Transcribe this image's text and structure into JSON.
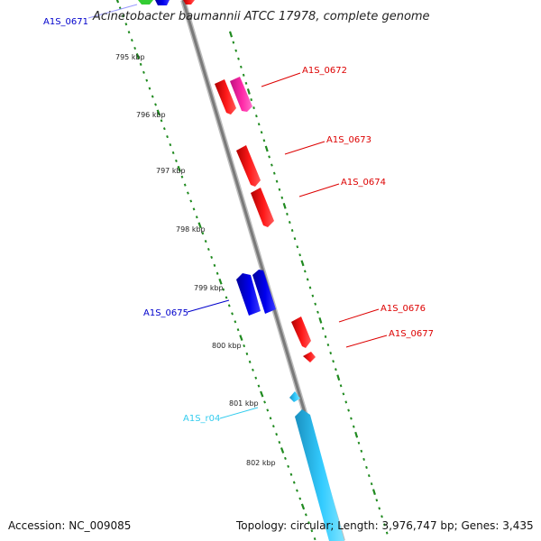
{
  "title": "Acinetobacter baumannii ATCC 17978, complete genome",
  "footer": {
    "accession": "Accession: NC_009085",
    "topology": "Topology: circular; Length: 3,976,747 bp; Genes: 3,435"
  },
  "colors": {
    "backbone": "#7a7a7a",
    "tick_dots": "#1f8a1f",
    "forward_gene": "#ff1a1a",
    "forward_pink": "#ff2aa8",
    "reverse_gene": "#0000ee",
    "rna_gene": "#33ccff",
    "fragment_green": "#33cc33"
  },
  "kbp_ticks": [
    "795 kbp",
    "796 kbp",
    "797 kbp",
    "798 kbp",
    "799 kbp",
    "800 kbp",
    "801 kbp",
    "802 kbp"
  ],
  "gene_labels": [
    {
      "text": "A1S_0671",
      "color": "#0000cc"
    },
    {
      "text": "A1S_0672",
      "color": "#dd0000"
    },
    {
      "text": "A1S_0673",
      "color": "#dd0000"
    },
    {
      "text": "A1S_0674",
      "color": "#dd0000"
    },
    {
      "text": "A1S_0675",
      "color": "#0000cc"
    },
    {
      "text": "A1S_0676",
      "color": "#dd0000"
    },
    {
      "text": "A1S_0677",
      "color": "#dd0000"
    },
    {
      "text": "A1S_r04",
      "color": "#33ccee"
    }
  ]
}
